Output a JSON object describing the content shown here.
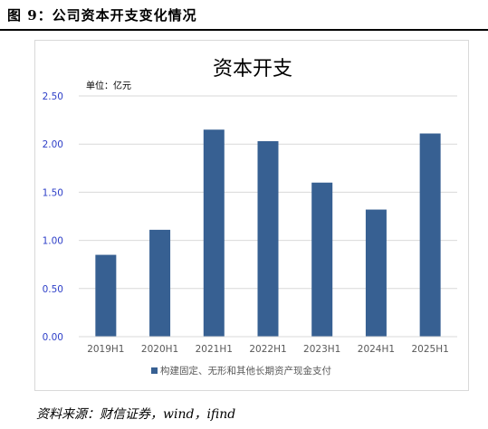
{
  "figure_title": "图 9：公司资本开支变化情况",
  "source_note": "资料来源：财信证券，wind，ifind",
  "chart_data": {
    "type": "bar",
    "title": "资本开支",
    "unit_label": "单位：亿元",
    "categories": [
      "2019H1",
      "2020H1",
      "2021H1",
      "2022H1",
      "2023H1",
      "2024H1",
      "2025H1"
    ],
    "series": [
      {
        "name": "构建固定、无形和其他长期资产现金支付",
        "values": [
          0.85,
          1.11,
          2.15,
          2.03,
          1.6,
          1.32,
          2.11
        ]
      }
    ],
    "ylim": [
      0,
      2.5
    ],
    "yticks": [
      "0.00",
      "0.50",
      "1.00",
      "1.50",
      "2.00",
      "2.50"
    ],
    "ytick_values": [
      0,
      0.5,
      1.0,
      1.5,
      2.0,
      2.5
    ],
    "grid": true,
    "legend_position": "bottom",
    "colors": {
      "bar": "#376092",
      "tick_text": "#2f40c8",
      "axis_text": "#595959",
      "grid": "#d9d9d9"
    }
  }
}
